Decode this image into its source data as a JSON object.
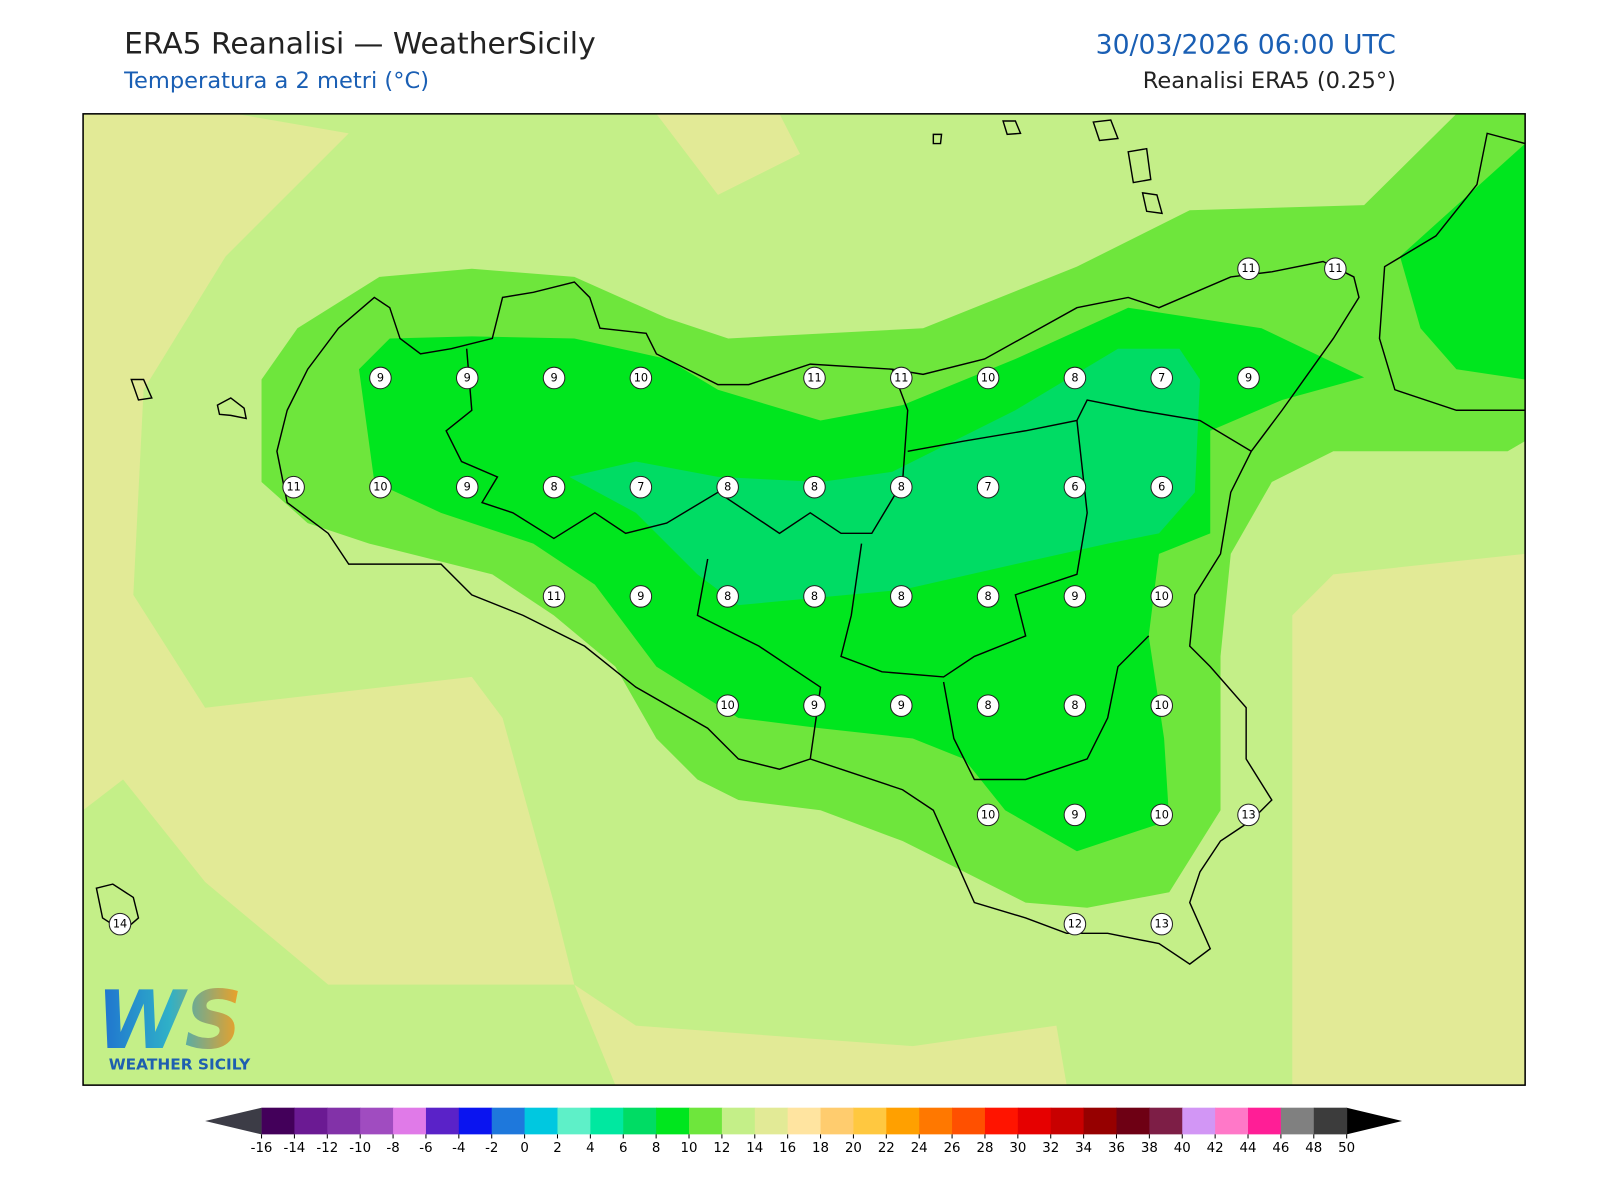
{
  "header": {
    "title": "ERA5 Reanalisi — WeatherSicily",
    "subtitle": "Temperatura a 2 metri (°C)",
    "datetime": "30/03/2026 06:00 UTC",
    "source": "Reanalisi ERA5 (0.25°)"
  },
  "stations": {
    "rows": [
      [
        null,
        null,
        null,
        null,
        null,
        null,
        null,
        null,
        null,
        null,
        null,
        null,
        null,
        11,
        11
      ],
      [
        null,
        null,
        null,
        9,
        9,
        9,
        10,
        null,
        11,
        11,
        10,
        8,
        7,
        9,
        null
      ],
      [
        null,
        null,
        11,
        10,
        9,
        8,
        7,
        8,
        8,
        8,
        7,
        6,
        6,
        null,
        null
      ],
      [
        null,
        null,
        null,
        null,
        null,
        11,
        9,
        8,
        8,
        8,
        8,
        9,
        10,
        null,
        null
      ],
      [
        null,
        null,
        null,
        null,
        null,
        null,
        null,
        10,
        9,
        9,
        8,
        8,
        10,
        null,
        null
      ],
      [
        null,
        null,
        null,
        null,
        null,
        null,
        null,
        null,
        null,
        null,
        10,
        9,
        10,
        13,
        null
      ],
      [
        14,
        null,
        null,
        null,
        null,
        null,
        null,
        null,
        null,
        null,
        null,
        12,
        13,
        null,
        null
      ]
    ]
  },
  "colorbar": {
    "ticks": [
      -16,
      -14,
      -12,
      -10,
      -8,
      -6,
      -4,
      -2,
      0,
      2,
      4,
      6,
      8,
      10,
      12,
      14,
      16,
      18,
      20,
      22,
      24,
      26,
      28,
      30,
      32,
      34,
      36,
      38,
      40,
      42,
      44,
      46,
      48,
      50
    ],
    "colors": [
      "#43005a",
      "#6b1a93",
      "#8232a8",
      "#a04cc0",
      "#e07ae8",
      "#5a22c8",
      "#0a14f0",
      "#1e78dc",
      "#00c8e0",
      "#5ef0c8",
      "#00e8a0",
      "#00dc64",
      "#00e61e",
      "#6ee63c",
      "#c4ef88",
      "#e2ea96",
      "#ffe4a0",
      "#ffcc6e",
      "#ffc840",
      "#ffa000",
      "#ff7800",
      "#ff5000",
      "#ff1400",
      "#e60000",
      "#c80000",
      "#960000",
      "#6e0014",
      "#7d1e46",
      "#d296f5",
      "#ff78c8",
      "#ff1e96",
      "#808080",
      "#3c3c3c"
    ],
    "under_color": "#3c3c46",
    "over_color": "#000000"
  },
  "logo": {
    "mark": "WS",
    "name": "WEATHER SICILY"
  }
}
